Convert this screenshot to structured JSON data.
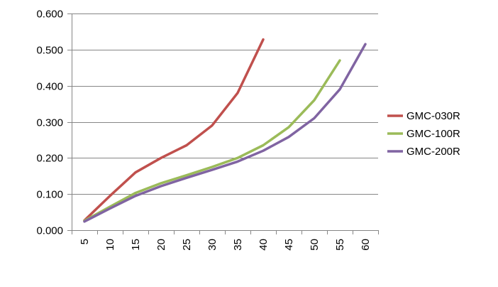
{
  "chart_data": {
    "type": "line",
    "title": "",
    "xlabel": "",
    "ylabel": "",
    "x": [
      5,
      10,
      15,
      20,
      25,
      30,
      35,
      40,
      45,
      50,
      55,
      60
    ],
    "x_tick_labels": [
      "5",
      "10",
      "15",
      "20",
      "25",
      "30",
      "35",
      "40",
      "45",
      "50",
      "55",
      "60"
    ],
    "ylim": [
      0,
      0.6
    ],
    "y_ticks": [
      0,
      0.1,
      0.2,
      0.3,
      0.4,
      0.5,
      0.6
    ],
    "y_tick_labels": [
      "0.000",
      "0.100",
      "0.200",
      "0.300",
      "0.400",
      "0.500",
      "0.600"
    ],
    "grid": "horizontal",
    "legend_position": "right",
    "series": [
      {
        "name": "GMC-030R",
        "color": "#c0504d",
        "points": [
          [
            5,
            0.027
          ],
          [
            10,
            0.095
          ],
          [
            15,
            0.16
          ],
          [
            20,
            0.2
          ],
          [
            25,
            0.235
          ],
          [
            30,
            0.29
          ],
          [
            35,
            0.38
          ],
          [
            40,
            0.528
          ]
        ]
      },
      {
        "name": "GMC-100R",
        "color": "#9bbb59",
        "points": [
          [
            5,
            0.026
          ],
          [
            10,
            0.065
          ],
          [
            15,
            0.103
          ],
          [
            20,
            0.13
          ],
          [
            25,
            0.152
          ],
          [
            30,
            0.175
          ],
          [
            35,
            0.2
          ],
          [
            40,
            0.235
          ],
          [
            45,
            0.285
          ],
          [
            50,
            0.36
          ],
          [
            55,
            0.47
          ]
        ]
      },
      {
        "name": "GMC-200R",
        "color": "#8064a2",
        "points": [
          [
            5,
            0.024
          ],
          [
            10,
            0.06
          ],
          [
            15,
            0.095
          ],
          [
            20,
            0.122
          ],
          [
            25,
            0.145
          ],
          [
            30,
            0.167
          ],
          [
            35,
            0.19
          ],
          [
            40,
            0.22
          ],
          [
            45,
            0.258
          ],
          [
            50,
            0.31
          ],
          [
            55,
            0.39
          ],
          [
            60,
            0.515
          ]
        ]
      }
    ]
  }
}
